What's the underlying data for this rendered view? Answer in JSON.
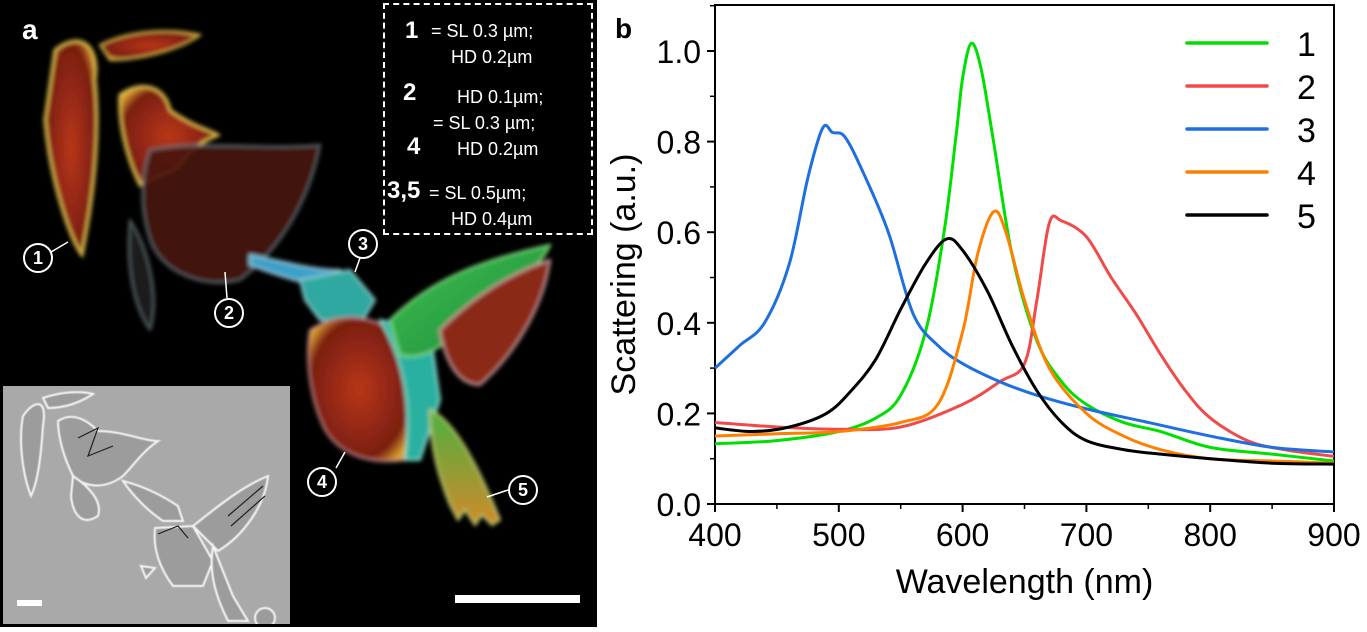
{
  "panel_a": {
    "label": "a",
    "key_box": {
      "rows": [
        {
          "num": "1",
          "eq": "= SL 0.3 µm;",
          "line2": "HD 0.2µm"
        },
        {
          "num": "2",
          "line1": "HD 0.1µm;"
        },
        {
          "eq": "=  SL 0.3 µm;"
        },
        {
          "num": "4",
          "line1": "HD 0.2µm"
        },
        {
          "num": "3,5",
          "eq": "= SL 0.5µm;",
          "line2": "HD 0.4µm"
        }
      ]
    },
    "callouts": [
      "1",
      "2",
      "3",
      "4",
      "5"
    ]
  },
  "chart_data": {
    "type": "line",
    "panel_label": "b",
    "title": "",
    "xlabel": "Wavelength (nm)",
    "ylabel": "Scattering (a.u.)",
    "xlim": [
      400,
      900
    ],
    "ylim": [
      0.0,
      1.1
    ],
    "xticks": [
      "400",
      "500",
      "600",
      "700",
      "800",
      "900"
    ],
    "yticks": [
      "0.0",
      "0.2",
      "0.4",
      "0.6",
      "0.8",
      "1.0"
    ],
    "grid": false,
    "legend_position": "top-right",
    "series": [
      {
        "name": "1",
        "color": "#00e000",
        "x": [
          400,
          450,
          500,
          530,
          550,
          570,
          585,
          595,
          600,
          607,
          615,
          625,
          640,
          660,
          680,
          700,
          730,
          760,
          800,
          850,
          900
        ],
        "y": [
          0.133,
          0.14,
          0.16,
          0.19,
          0.24,
          0.38,
          0.6,
          0.82,
          0.94,
          1.017,
          0.96,
          0.8,
          0.55,
          0.36,
          0.27,
          0.22,
          0.18,
          0.16,
          0.125,
          0.11,
          0.095
        ]
      },
      {
        "name": "2",
        "color": "#f04a4a",
        "x": [
          400,
          450,
          500,
          550,
          600,
          630,
          650,
          660,
          670,
          680,
          700,
          720,
          740,
          760,
          780,
          800,
          830,
          860,
          900
        ],
        "y": [
          0.18,
          0.17,
          0.165,
          0.17,
          0.22,
          0.27,
          0.31,
          0.45,
          0.62,
          0.625,
          0.59,
          0.5,
          0.42,
          0.33,
          0.25,
          0.19,
          0.14,
          0.12,
          0.105
        ]
      },
      {
        "name": "3",
        "color": "#1e6fe0",
        "x": [
          400,
          420,
          440,
          460,
          475,
          487,
          495,
          505,
          520,
          540,
          560,
          580,
          600,
          630,
          660,
          700,
          750,
          800,
          850,
          900
        ],
        "y": [
          0.3,
          0.35,
          0.4,
          0.53,
          0.72,
          0.83,
          0.82,
          0.81,
          0.73,
          0.6,
          0.42,
          0.35,
          0.31,
          0.27,
          0.24,
          0.21,
          0.18,
          0.15,
          0.125,
          0.115
        ]
      },
      {
        "name": "4",
        "color": "#ff8000",
        "x": [
          400,
          450,
          500,
          550,
          580,
          600,
          612,
          625,
          635,
          650,
          670,
          700,
          730,
          760,
          800,
          850,
          900
        ],
        "y": [
          0.15,
          0.155,
          0.16,
          0.18,
          0.22,
          0.38,
          0.55,
          0.645,
          0.6,
          0.45,
          0.3,
          0.2,
          0.15,
          0.12,
          0.1,
          0.095,
          0.09
        ]
      },
      {
        "name": "5",
        "color": "#000000",
        "x": [
          400,
          430,
          460,
          490,
          510,
          530,
          550,
          570,
          587,
          600,
          620,
          640,
          660,
          680,
          700,
          730,
          760,
          800,
          850,
          900
        ],
        "y": [
          0.168,
          0.16,
          0.17,
          0.2,
          0.25,
          0.32,
          0.43,
          0.53,
          0.585,
          0.56,
          0.47,
          0.35,
          0.25,
          0.18,
          0.14,
          0.12,
          0.11,
          0.1,
          0.09,
          0.088
        ]
      }
    ]
  }
}
